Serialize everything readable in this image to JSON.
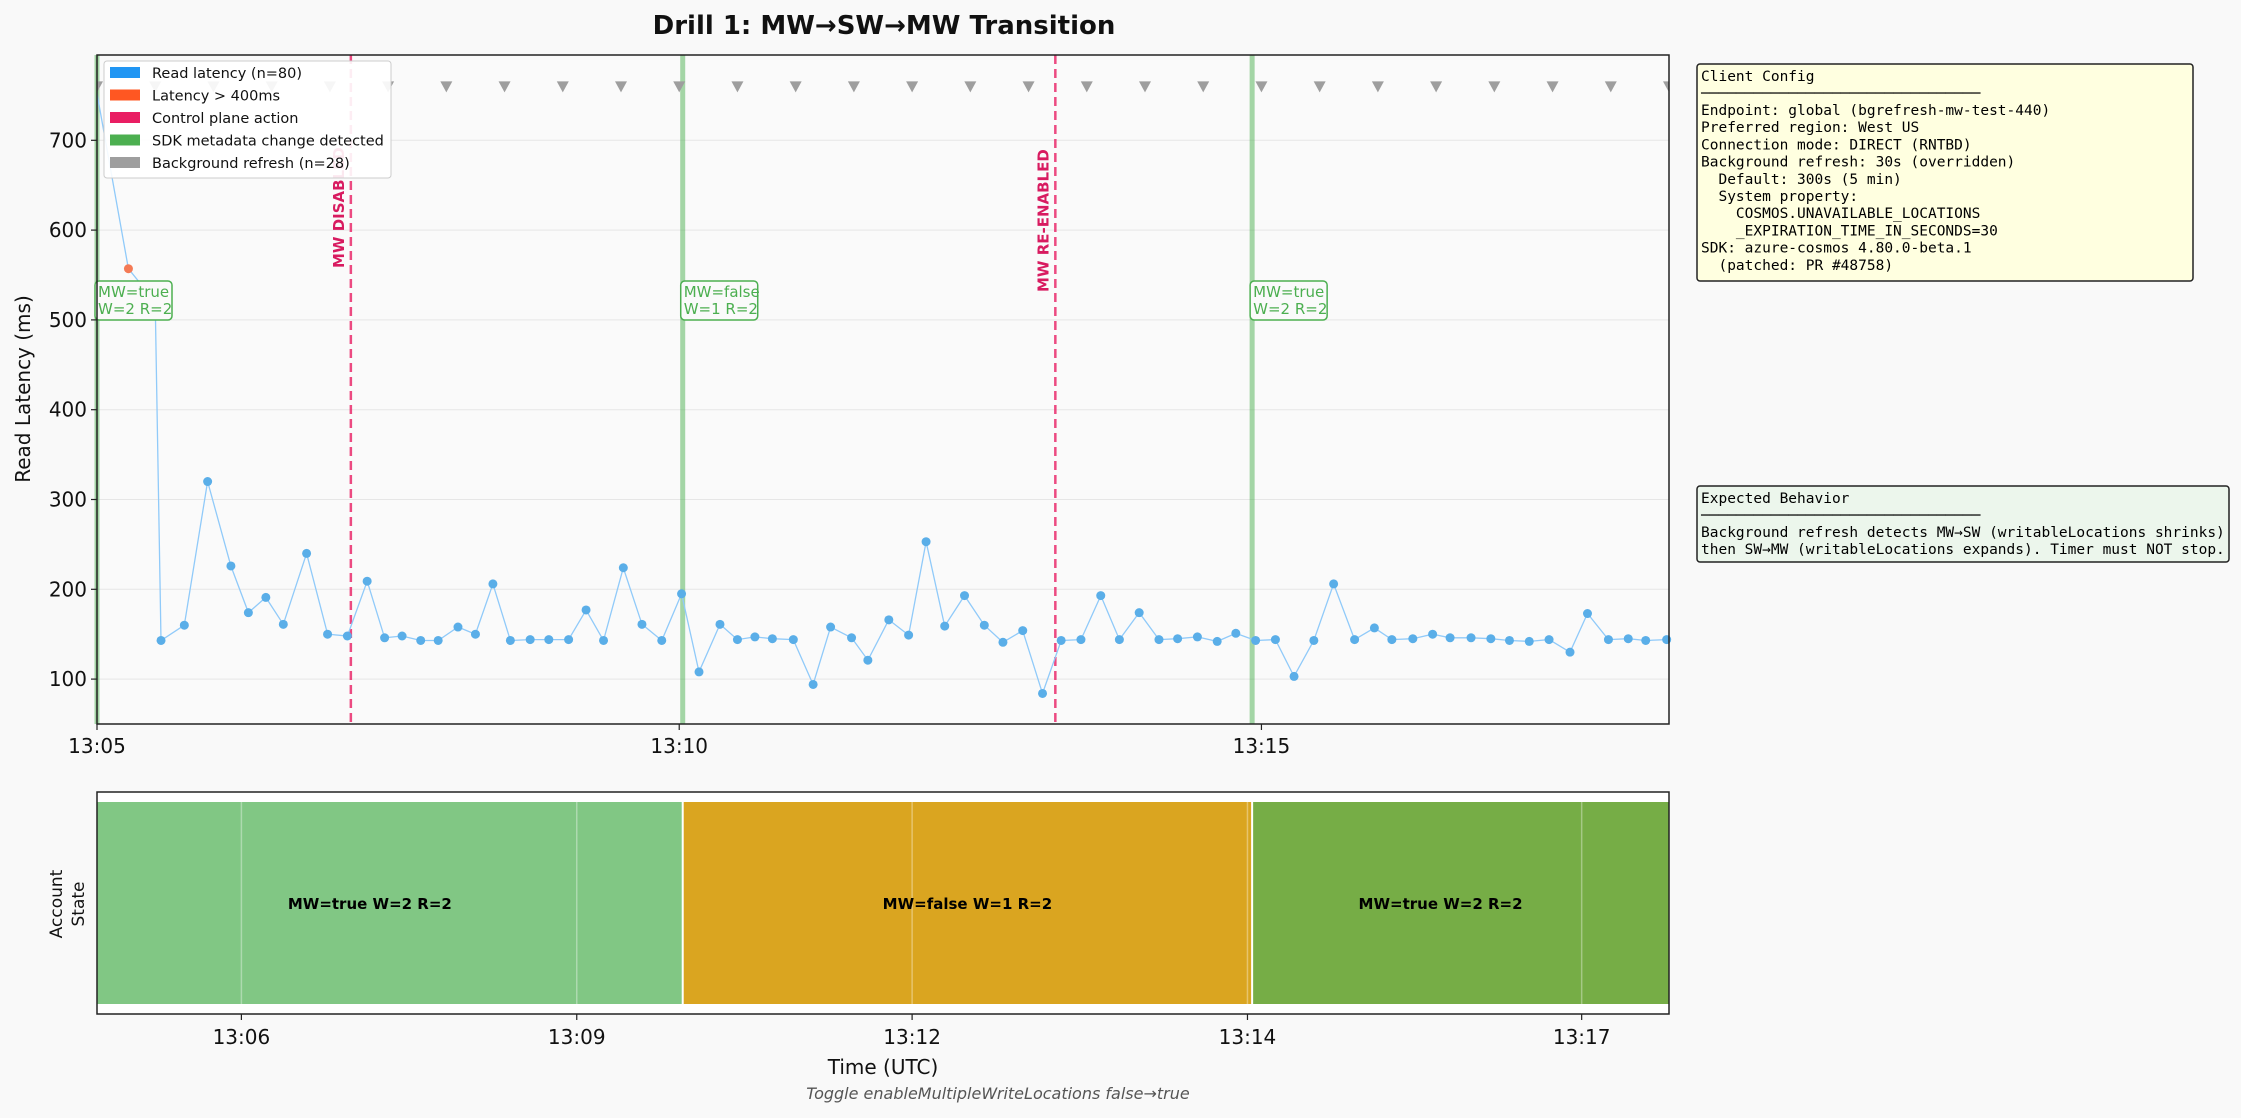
{
  "chart_data": [
    {
      "type": "scatter",
      "title": "Drill 1: MW→SW→MW Transition",
      "ylabel": "Read Latency (ms)",
      "xlabel": "",
      "x_ticks": [
        "13:05",
        "13:10",
        "13:15"
      ],
      "y_ticks": [
        100,
        200,
        300,
        400,
        500,
        600,
        700
      ],
      "xlim_minutes": [
        0,
        13.5
      ],
      "ylim": [
        50,
        795
      ],
      "grid": true,
      "legend_placement": "top-left",
      "legend": [
        {
          "label": "Read latency (n=80)",
          "color": "#2196f3"
        },
        {
          "label": "Latency > 400ms",
          "color": "#ff5722"
        },
        {
          "label": "Control plane action",
          "color": "#e91e63"
        },
        {
          "label": "SDK metadata change detected",
          "color": "#4caf50"
        },
        {
          "label": "Background refresh (n=28)",
          "color": "#9e9e9e"
        }
      ],
      "series": [
        {
          "name": "Read latency (n=80)",
          "x_minutes": [
            0.55,
            0.75,
            0.95,
            1.15,
            1.3,
            1.45,
            1.6,
            1.8,
            1.98,
            2.15,
            2.32,
            2.47,
            2.62,
            2.78,
            2.93,
            3.1,
            3.25,
            3.4,
            3.55,
            3.72,
            3.88,
            4.05,
            4.2,
            4.35,
            4.52,
            4.68,
            4.85,
            5.02,
            5.17,
            5.35,
            5.5,
            5.65,
            5.8,
            5.98,
            6.15,
            6.3,
            6.48,
            6.62,
            6.8,
            6.97,
            7.12,
            7.28,
            7.45,
            7.62,
            7.78,
            7.95,
            8.12,
            8.28,
            8.45,
            8.62,
            8.78,
            8.95,
            9.12,
            9.28,
            9.45,
            9.62,
            9.78,
            9.95,
            10.12,
            10.28,
            10.45,
            10.62,
            10.8,
            10.97,
            11.12,
            11.3,
            11.47,
            11.62,
            11.8,
            11.97,
            12.13,
            12.3,
            12.47,
            12.65,
            12.8,
            12.98,
            13.15,
            13.3,
            13.48
          ],
          "values": [
            143,
            160,
            320,
            226,
            174,
            191,
            161,
            240,
            150,
            148,
            209,
            146,
            148,
            143,
            143,
            158,
            150,
            206,
            143,
            144,
            144,
            144,
            177,
            143,
            224,
            161,
            143,
            195,
            108,
            161,
            144,
            147,
            145,
            144,
            94,
            158,
            146,
            121,
            166,
            149,
            253,
            159,
            193,
            160,
            141,
            154,
            84,
            143,
            144,
            193,
            144,
            174,
            144,
            145,
            147,
            142,
            151,
            143,
            144,
            103,
            143,
            206,
            144,
            157,
            144,
            145,
            150,
            146,
            146,
            145,
            143,
            142,
            144,
            130,
            173,
            144,
            145,
            143,
            144
          ]
        },
        {
          "name": "Latency > 400ms",
          "x_minutes": [
            0.27
          ],
          "values": [
            557
          ]
        },
        {
          "name": "Background refresh (n=28)",
          "x_minutes": [
            0.0,
            0.5,
            1.0,
            1.5,
            2.0,
            2.5,
            3.0,
            3.5,
            4.0,
            4.5,
            5.0,
            5.5,
            6.0,
            6.5,
            7.0,
            7.5,
            8.0,
            8.5,
            9.0,
            9.5,
            10.0,
            10.5,
            11.0,
            11.5,
            12.0,
            12.5,
            13.0,
            13.5
          ],
          "values": [
            760,
            760,
            760,
            760,
            760,
            760,
            760,
            760,
            760,
            760,
            760,
            760,
            760,
            760,
            760,
            760,
            760,
            760,
            760,
            760,
            760,
            760,
            760,
            760,
            760,
            760,
            760,
            760
          ]
        }
      ],
      "control_plane_actions": [
        {
          "x_minutes": 2.18,
          "label": "MW DISABLED"
        },
        {
          "x_minutes": 8.23,
          "label": "MW RE-ENABLED"
        }
      ],
      "sdk_changes": [
        {
          "x_minutes": 0.0,
          "label_line1": "MW=true",
          "label_line2": "W=2 R=2"
        },
        {
          "x_minutes": 5.03,
          "label_line1": "MW=false",
          "label_line2": "W=1 R=2"
        },
        {
          "x_minutes": 9.92,
          "label_line1": "MW=true",
          "label_line2": "W=2 R=2"
        }
      ]
    },
    {
      "type": "timeline",
      "ylabel_line1": "Account",
      "ylabel_line2": "State",
      "xlabel": "Time (UTC)",
      "x_ticks": [
        "13:06",
        "13:09",
        "13:12",
        "13:14",
        "13:17"
      ],
      "segments": [
        {
          "label": "MW=true W=2 R=2",
          "start_minutes": 0.0,
          "end_minutes": 5.03,
          "color": "#81c784"
        },
        {
          "label": "MW=false W=1 R=2",
          "start_minutes": 5.03,
          "end_minutes": 9.92,
          "color": "#daa520"
        },
        {
          "label": "MW=true W=2 R=2",
          "start_minutes": 9.92,
          "end_minutes": 13.5,
          "color": "#76ad46"
        }
      ]
    }
  ],
  "footnote": "Toggle enableMultipleWriteLocations false→true",
  "client_config": {
    "title": "Client Config",
    "divider": "────────────────────────────────",
    "lines": [
      "Endpoint: global (bgrefresh-mw-test-440)",
      "Preferred region: West US",
      "Connection mode: DIRECT (RNTBD)",
      "Background refresh: 30s (overridden)",
      "  Default: 300s (5 min)",
      "  System property:",
      "    COSMOS.UNAVAILABLE_LOCATIONS",
      "    _EXPIRATION_TIME_IN_SECONDS=30",
      "SDK: azure-cosmos 4.80.0-beta.1",
      "  (patched: PR #48758)"
    ]
  },
  "expected_behavior": {
    "title": "Expected Behavior",
    "divider": "────────────────────────────────",
    "lines": [
      "Background refresh detects MW→SW (writableLocations shrinks)",
      "then SW→MW (writableLocations expands). Timer must NOT stop."
    ]
  }
}
